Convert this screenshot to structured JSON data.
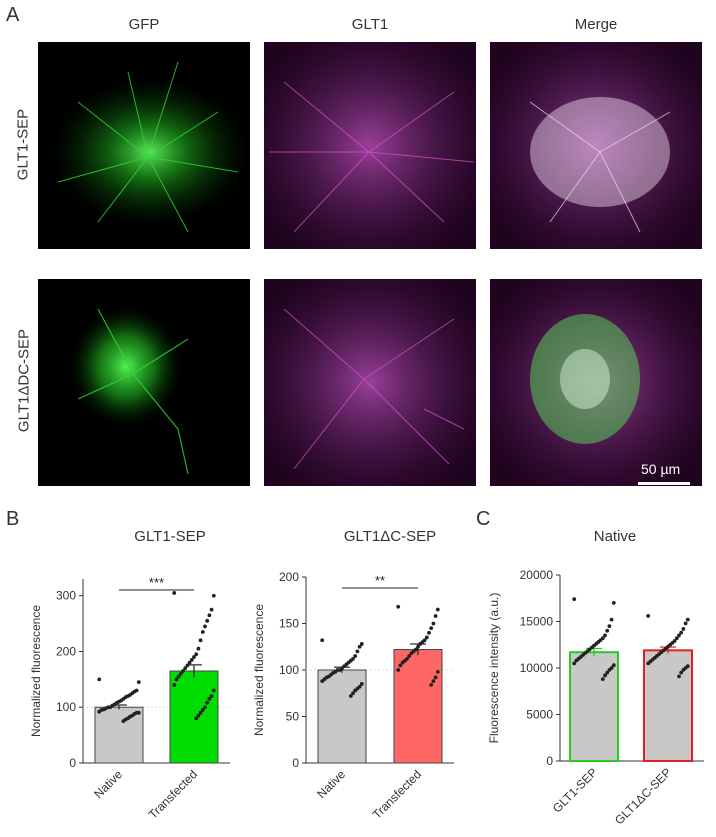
{
  "panels": {
    "a": "A",
    "b": "B",
    "c": "C"
  },
  "columns": [
    "GFP",
    "GLT1",
    "Merge"
  ],
  "rows": [
    "GLT1-SEP",
    "GLT1ΔDC-SEP"
  ],
  "scale_bar": "50 µm",
  "colors": {
    "green": "#1fe01f",
    "magenta": "#cc33cc",
    "gray_bar": "#c8c8c8",
    "red_bar": "#ff6666",
    "red_outline": "#e02020",
    "green_outline": "#22cc22"
  },
  "chart_data": [
    {
      "type": "bar",
      "title": "GLT1-SEP",
      "ylabel": "Normalized fluorescence",
      "categories": [
        "Native",
        "Transfected"
      ],
      "values": [
        100,
        165
      ],
      "errors": [
        4,
        11
      ],
      "bar_colors": [
        "#c8c8c8",
        "#00dd00"
      ],
      "ylim": [
        0,
        330
      ],
      "yticks": [
        "0",
        "100",
        "200",
        "300"
      ],
      "significance": "***",
      "points": [
        [
          150,
          145,
          130,
          128,
          125,
          122,
          120,
          118,
          115,
          112,
          110,
          108,
          105,
          103,
          100,
          100,
          98,
          96,
          95,
          92,
          90,
          90,
          88,
          85,
          83,
          80,
          78,
          75
        ],
        [
          305,
          300,
          275,
          265,
          255,
          245,
          235,
          220,
          205,
          195,
          190,
          185,
          180,
          175,
          170,
          165,
          160,
          155,
          150,
          140,
          130,
          120,
          115,
          108,
          100,
          95,
          90,
          85,
          80
        ]
      ]
    },
    {
      "type": "bar",
      "title": "GLT1ΔC-SEP",
      "ylabel": "Normalized fluorescence",
      "categories": [
        "Native",
        "Transfected"
      ],
      "values": [
        100,
        122
      ],
      "errors": [
        3,
        6
      ],
      "bar_colors": [
        "#c8c8c8",
        "#ff6666"
      ],
      "ylim": [
        0,
        200
      ],
      "yticks": [
        "0",
        "50",
        "100",
        "150",
        "200"
      ],
      "significance": "**",
      "points": [
        [
          132,
          128,
          125,
          120,
          115,
          112,
          110,
          108,
          106,
          104,
          102,
          100,
          100,
          98,
          97,
          95,
          93,
          92,
          90,
          88,
          85,
          82,
          80,
          78,
          75,
          72
        ],
        [
          168,
          165,
          158,
          150,
          145,
          140,
          135,
          132,
          130,
          128,
          125,
          122,
          120,
          118,
          115,
          112,
          110,
          108,
          105,
          100,
          98,
          92,
          88,
          84
        ]
      ]
    },
    {
      "type": "bar",
      "title": "Native",
      "ylabel": "Fluorescence intensity (a.u.)",
      "categories": [
        "GLT1-SEP",
        "GLT1ΔC-SEP"
      ],
      "values": [
        11700,
        11900
      ],
      "errors": [
        400,
        350
      ],
      "bar_colors": [
        "#c8c8c8",
        "#c8c8c8"
      ],
      "outline_colors": [
        "#22cc22",
        "#e02020"
      ],
      "ylim": [
        0,
        20000
      ],
      "yticks": [
        "0",
        "5000",
        "10000",
        "15000",
        "20000"
      ],
      "points": [
        [
          17400,
          17000,
          15200,
          14500,
          14000,
          13500,
          13200,
          13000,
          12800,
          12600,
          12400,
          12200,
          12000,
          11800,
          11600,
          11400,
          11200,
          11000,
          10800,
          10500,
          10300,
          10000,
          9800,
          9500,
          9200,
          8800
        ],
        [
          15600,
          15200,
          14800,
          14200,
          13800,
          13500,
          13200,
          12900,
          12700,
          12500,
          12300,
          12100,
          11900,
          11700,
          11500,
          11300,
          11100,
          10900,
          10700,
          10500,
          10200,
          10000,
          9800,
          9500,
          9100
        ]
      ]
    }
  ]
}
